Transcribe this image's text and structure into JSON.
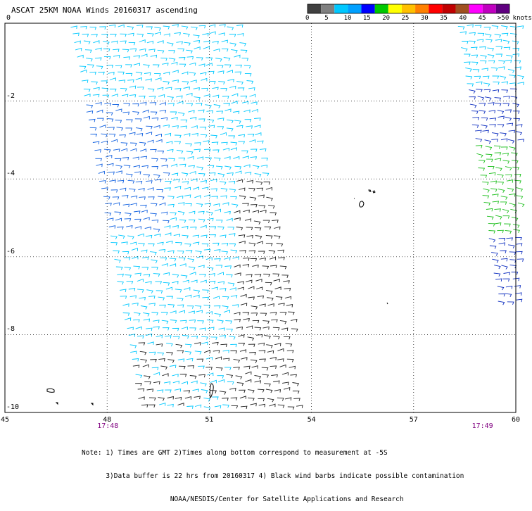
{
  "title": "ASCAT 25KM NOAA Winds 20160317 ascending",
  "legend": {
    "unit": "knots",
    "colors": [
      "#404040",
      "#808080",
      "#00c8ff",
      "#00a0ff",
      "#0000ff",
      "#00c800",
      "#ffff00",
      "#ffc000",
      "#ff8000",
      "#ff0000",
      "#c00000",
      "#a05020",
      "#ff00ff",
      "#c000c0",
      "#600080"
    ],
    "labels": [
      "0",
      "5",
      "10",
      "15",
      "20",
      "25",
      "30",
      "35",
      "40",
      "45",
      ">50 knots"
    ]
  },
  "axes": {
    "x_ticks": [
      "45",
      "48",
      "51",
      "54",
      "57",
      "60"
    ],
    "y_ticks": [
      "0",
      "-2",
      "-4",
      "-6",
      "-8",
      "-10"
    ],
    "lon_range": [
      45,
      60
    ],
    "lat_range": [
      -10,
      0
    ],
    "grid": "dotted"
  },
  "times": [
    {
      "label": "17:48",
      "lon": 48
    },
    {
      "label": "17:49",
      "lon": 59
    }
  ],
  "notes": [
    "Note: 1) Times are GMT 2)Times along bottom correspond to measurement at -5S",
    "      3)Data buffer is 22 hrs from 20160317 4) Black wind barbs indicate possible contamination",
    "                      NOAA/NESDIS/Center for Satellite Applications and Research"
  ]
}
